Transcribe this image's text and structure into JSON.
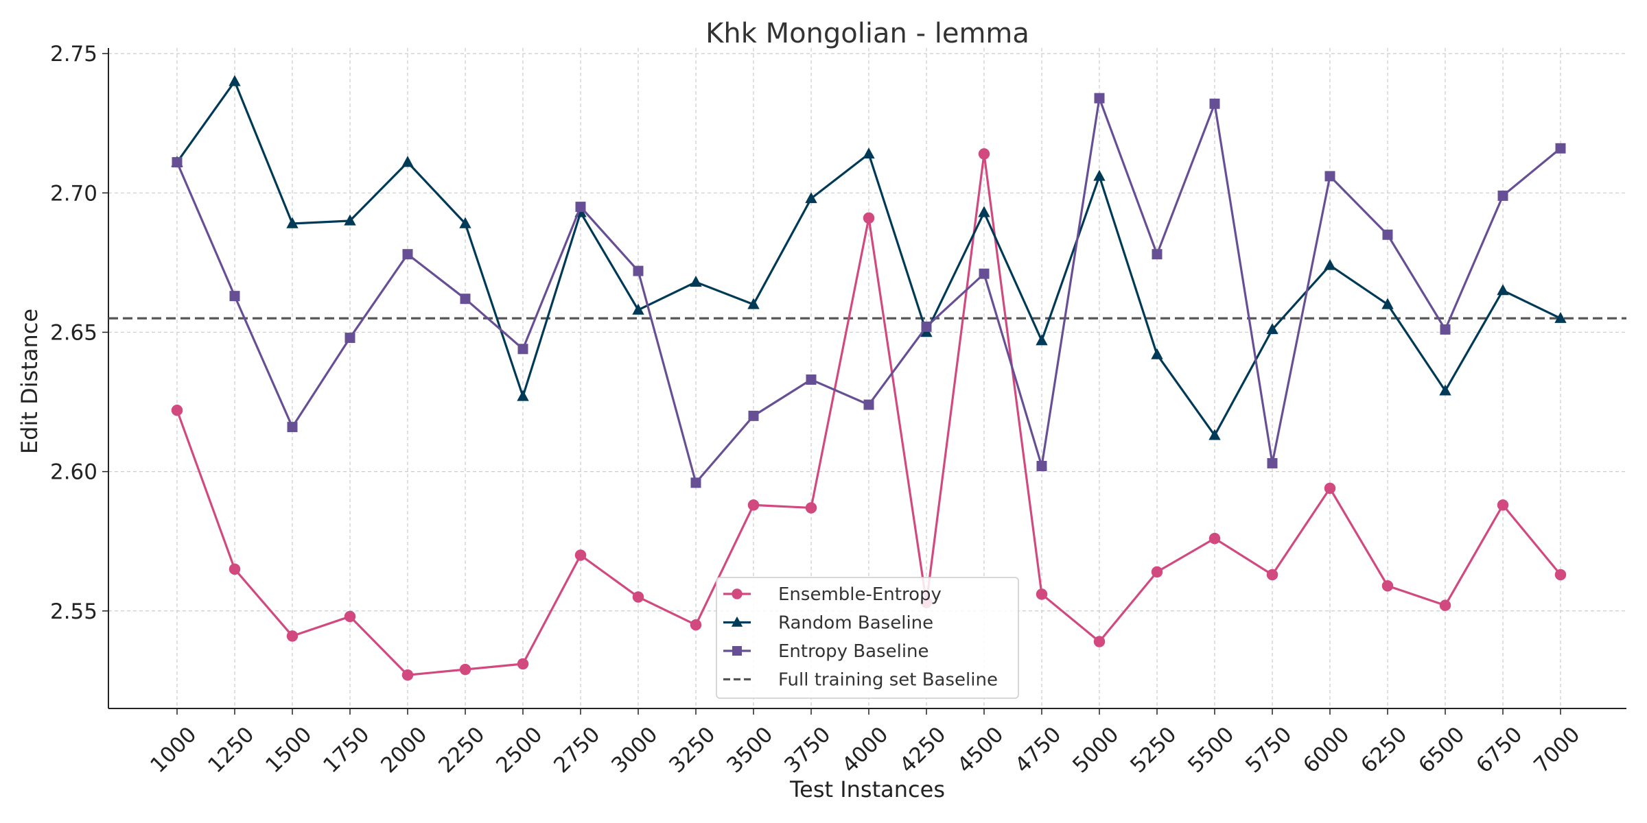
{
  "chart_data": {
    "type": "line",
    "title": "Khk Mongolian - lemma",
    "xlabel": "Test Instances",
    "ylabel": "Edit Distance",
    "categories": [
      "1000",
      "1250",
      "1500",
      "1750",
      "2000",
      "2250",
      "2500",
      "2750",
      "3000",
      "3250",
      "3500",
      "3750",
      "4000",
      "4250",
      "4500",
      "4750",
      "5000",
      "5250",
      "5500",
      "5750",
      "6000",
      "6250",
      "6500",
      "6750",
      "7000"
    ],
    "ylim": [
      2.515,
      2.752
    ],
    "yticks": [
      2.55,
      2.6,
      2.65,
      2.7,
      2.75
    ],
    "ytick_labels": [
      "2.55",
      "2.60",
      "2.65",
      "2.70",
      "2.75"
    ],
    "grid": true,
    "legend_position": "bottom-center",
    "series": [
      {
        "name": "Ensemble-Entropy",
        "color": "#d1497f",
        "marker": "circle",
        "values": [
          2.622,
          2.565,
          2.541,
          2.548,
          2.527,
          2.529,
          2.531,
          2.57,
          2.555,
          2.545,
          2.588,
          2.587,
          2.691,
          2.553,
          2.714,
          2.556,
          2.539,
          2.564,
          2.576,
          2.563,
          2.594,
          2.559,
          2.552,
          2.588,
          2.563
        ]
      },
      {
        "name": "Random Baseline",
        "color": "#003a57",
        "marker": "triangle",
        "values": [
          2.711,
          2.74,
          2.689,
          2.69,
          2.711,
          2.689,
          2.627,
          2.693,
          2.658,
          2.668,
          2.66,
          2.698,
          2.714,
          2.65,
          2.693,
          2.647,
          2.706,
          2.642,
          2.613,
          2.651,
          2.674,
          2.66,
          2.629,
          2.665,
          2.655
        ]
      },
      {
        "name": "Entropy Baseline",
        "color": "#674f95",
        "marker": "square",
        "values": [
          2.711,
          2.663,
          2.616,
          2.648,
          2.678,
          2.662,
          2.644,
          2.695,
          2.672,
          2.596,
          2.62,
          2.633,
          2.624,
          2.652,
          2.671,
          2.602,
          2.734,
          2.678,
          2.732,
          2.603,
          2.706,
          2.685,
          2.651,
          2.699,
          2.716
        ]
      }
    ],
    "reference_lines": [
      {
        "name": "Full training set Baseline",
        "value": 2.655,
        "color": "#555555",
        "style": "dashed"
      }
    ]
  }
}
